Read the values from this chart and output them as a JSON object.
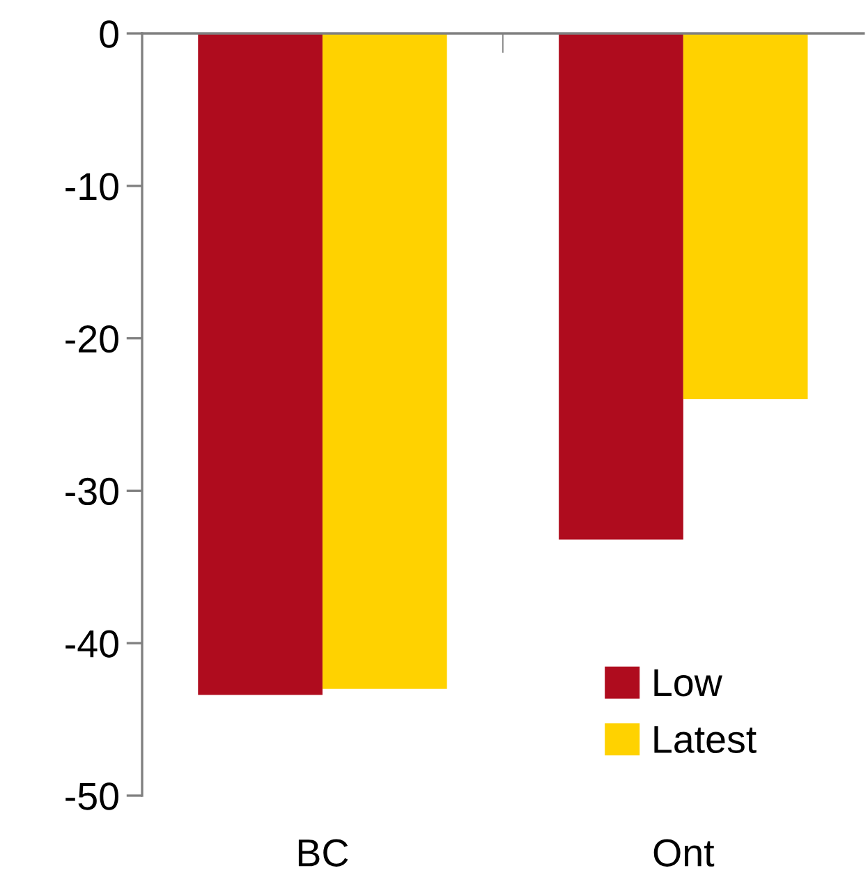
{
  "chart_data": {
    "type": "bar",
    "categories": [
      "BC",
      "Ont"
    ],
    "series": [
      {
        "name": "Low",
        "color": "#af0c1e",
        "values": [
          -43.4,
          -33.2
        ]
      },
      {
        "name": "Latest",
        "color": "#ffd200",
        "values": [
          -43,
          -24
        ]
      }
    ],
    "ylim": [
      -50,
      0
    ],
    "yticks": [
      -50,
      -40,
      -30,
      -20,
      -10,
      0
    ],
    "grid": false,
    "legend": "bottom right"
  }
}
